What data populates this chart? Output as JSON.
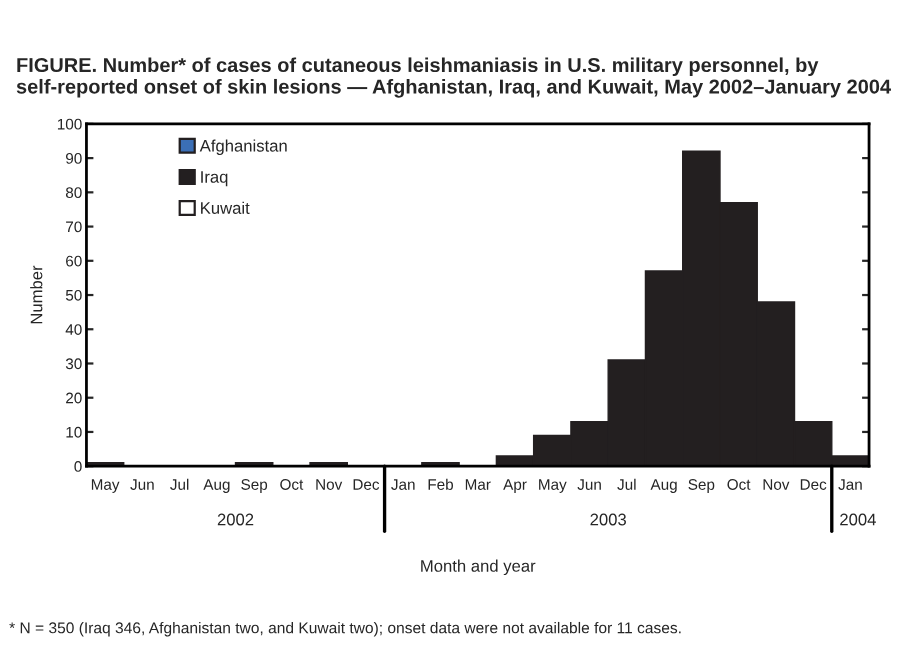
{
  "chart_data": {
    "type": "bar",
    "title": "FIGURE. Number* of cases of cutaneous leishmaniasis in U.S. military personnel, by self-reported onset of skin lesions — Afghanistan, Iraq, and Kuwait, May 2002–January 2004",
    "xlabel": "Month and year",
    "ylabel": "Number",
    "categories": [
      "May",
      "Jun",
      "Jul",
      "Aug",
      "Sep",
      "Oct",
      "Nov",
      "Dec",
      "Jan",
      "Feb",
      "Mar",
      "Apr",
      "May",
      "Jun",
      "Jul",
      "Aug",
      "Sep",
      "Oct",
      "Nov",
      "Dec",
      "Jan"
    ],
    "series": [
      {
        "name": "Afghanistan",
        "color": "#3b6fb6",
        "values": [
          null,
          null,
          null,
          null,
          null,
          null,
          null,
          null,
          null,
          null,
          null,
          null,
          null,
          null,
          null,
          null,
          null,
          null,
          null,
          null,
          null
        ]
      },
      {
        "name": "Iraq",
        "color": "#231f20",
        "values": [
          1,
          0,
          0,
          0,
          1,
          0,
          1,
          0,
          0,
          1,
          0,
          3,
          9,
          13,
          31,
          57,
          92,
          77,
          48,
          13,
          3
        ]
      },
      {
        "name": "Kuwait",
        "color": "#ffffff",
        "values": [
          null,
          null,
          null,
          null,
          null,
          null,
          null,
          null,
          null,
          null,
          null,
          null,
          null,
          null,
          null,
          null,
          null,
          null,
          null,
          null,
          null
        ]
      }
    ],
    "ylim": [
      0,
      100
    ],
    "yticks": [
      0,
      10,
      20,
      30,
      40,
      50,
      60,
      70,
      80,
      90,
      100
    ],
    "legend": "top left",
    "grid": false,
    "annotations": [
      "2002",
      "2003",
      "2004",
      "* N = 350 (Iraq 346, Afghanistan two, and Kuwait two); onset data were not available for 11 cases."
    ]
  }
}
